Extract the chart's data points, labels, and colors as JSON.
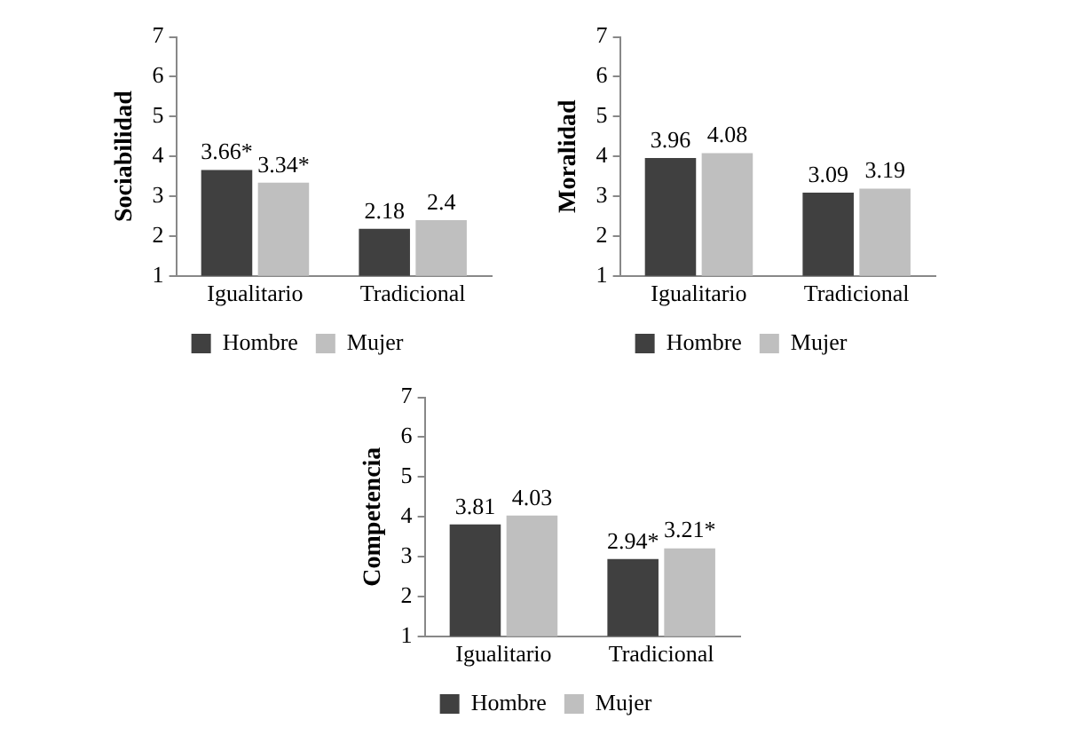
{
  "chart_data": [
    {
      "type": "bar",
      "ylabel": "Sociabilidad",
      "categories": [
        "Igualitario",
        "Tradicional"
      ],
      "ylim": [
        1,
        7
      ],
      "yticks": [
        1,
        2,
        3,
        4,
        5,
        6,
        7
      ],
      "grid": false,
      "legend": "bottom",
      "series": [
        {
          "name": "Hombre",
          "color": "#404040",
          "values": [
            3.66,
            2.18
          ],
          "value_labels": [
            "3.66*",
            "2.18"
          ]
        },
        {
          "name": "Mujer",
          "color": "#bfbfbf",
          "values": [
            3.34,
            2.4
          ],
          "value_labels": [
            "3.34*",
            "2.4"
          ]
        }
      ]
    },
    {
      "type": "bar",
      "ylabel": "Moralidad",
      "categories": [
        "Igualitario",
        "Tradicional"
      ],
      "ylim": [
        1,
        7
      ],
      "yticks": [
        1,
        2,
        3,
        4,
        5,
        6,
        7
      ],
      "grid": false,
      "legend": "bottom",
      "series": [
        {
          "name": "Hombre",
          "color": "#404040",
          "values": [
            3.96,
            3.09
          ],
          "value_labels": [
            "3.96",
            "3.09"
          ]
        },
        {
          "name": "Mujer",
          "color": "#bfbfbf",
          "values": [
            4.08,
            3.19
          ],
          "value_labels": [
            "4.08",
            "3.19"
          ]
        }
      ]
    },
    {
      "type": "bar",
      "ylabel": "Competencia",
      "categories": [
        "Igualitario",
        "Tradicional"
      ],
      "ylim": [
        1,
        7
      ],
      "yticks": [
        1,
        2,
        3,
        4,
        5,
        6,
        7
      ],
      "grid": false,
      "legend": "bottom",
      "series": [
        {
          "name": "Hombre",
          "color": "#404040",
          "values": [
            3.81,
            2.94
          ],
          "value_labels": [
            "3.81",
            "2.94*"
          ]
        },
        {
          "name": "Mujer",
          "color": "#bfbfbf",
          "values": [
            4.03,
            3.21
          ],
          "value_labels": [
            "4.03",
            "3.21*"
          ]
        }
      ]
    }
  ]
}
